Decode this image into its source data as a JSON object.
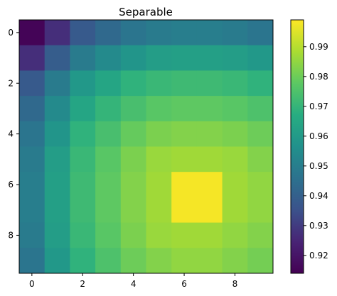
{
  "chart_data": {
    "type": "heatmap",
    "title": "Separable",
    "x_ticks": [
      "0",
      "2",
      "4",
      "6",
      "8"
    ],
    "y_ticks": [
      "0",
      "2",
      "4",
      "6",
      "8"
    ],
    "colorbar": {
      "range": [
        0.914,
        0.999
      ],
      "ticks": [
        "0.92",
        "0.93",
        "0.94",
        "0.95",
        "0.96",
        "0.97",
        "0.98",
        "0.99"
      ],
      "tick_values": [
        0.92,
        0.93,
        0.94,
        0.95,
        0.96,
        0.97,
        0.98,
        0.99
      ],
      "colormap": "viridis"
    },
    "grid": false,
    "values": [
      [
        0.915,
        0.927,
        0.938,
        0.943,
        0.947,
        0.949,
        0.95,
        0.95,
        0.949,
        0.947
      ],
      [
        0.927,
        0.939,
        0.949,
        0.954,
        0.958,
        0.961,
        0.962,
        0.962,
        0.961,
        0.959
      ],
      [
        0.938,
        0.949,
        0.959,
        0.964,
        0.969,
        0.971,
        0.972,
        0.972,
        0.971,
        0.969
      ],
      [
        0.943,
        0.954,
        0.964,
        0.97,
        0.974,
        0.977,
        0.978,
        0.978,
        0.977,
        0.975
      ],
      [
        0.947,
        0.958,
        0.969,
        0.974,
        0.979,
        0.982,
        0.983,
        0.983,
        0.982,
        0.98
      ],
      [
        0.949,
        0.961,
        0.971,
        0.977,
        0.982,
        0.986,
        0.987,
        0.987,
        0.986,
        0.983
      ],
      [
        0.95,
        0.962,
        0.972,
        0.978,
        0.983,
        0.987,
        0.998,
        0.998,
        0.987,
        0.985
      ],
      [
        0.95,
        0.962,
        0.972,
        0.978,
        0.983,
        0.987,
        0.998,
        0.998,
        0.987,
        0.985
      ],
      [
        0.949,
        0.961,
        0.971,
        0.977,
        0.982,
        0.986,
        0.987,
        0.987,
        0.985,
        0.983
      ],
      [
        0.947,
        0.959,
        0.969,
        0.975,
        0.98,
        0.983,
        0.985,
        0.985,
        0.983,
        0.981
      ]
    ]
  }
}
